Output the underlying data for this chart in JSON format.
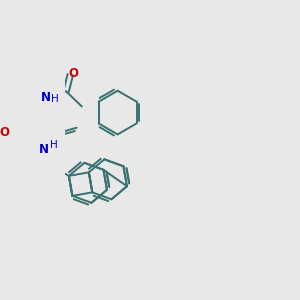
{
  "bg_color": "#e8e8e8",
  "bond_color": "#3a7070",
  "N_color": "#0000cc",
  "O_color": "#cc0000",
  "lw": 1.4,
  "figsize": [
    3.0,
    3.0
  ],
  "dpi": 100,
  "xlim": [
    0,
    300
  ],
  "ylim": [
    0,
    300
  ]
}
